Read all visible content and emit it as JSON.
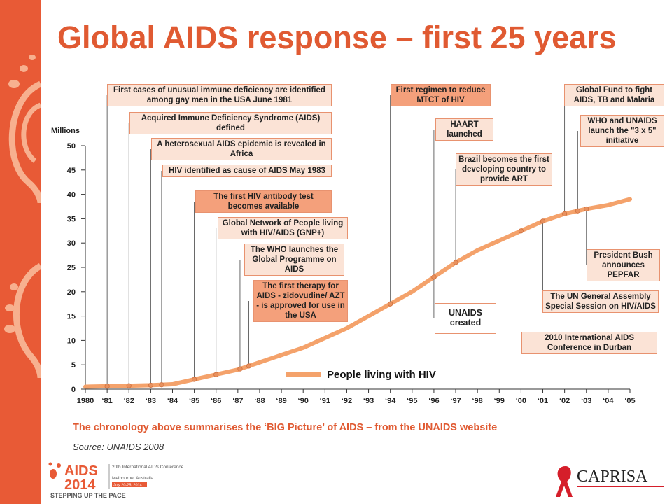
{
  "title": "Global AIDS response – first 25 years",
  "caption": "The chronology above summarises the ‘BIG Picture’ of AIDS – from the UNAIDS website",
  "source": "Source: UNAIDS 2008",
  "colors": {
    "accent": "#e05a32",
    "line": "#f4a26b",
    "box_border": "#e8926f",
    "box_fill": "#fbe3d6"
  },
  "chart_data": {
    "type": "line",
    "ylabel": "Millions",
    "ylim": [
      0,
      50
    ],
    "yticks": [
      0,
      5,
      10,
      15,
      20,
      25,
      30,
      35,
      40,
      45,
      50
    ],
    "xticks": [
      "1980",
      "‘81",
      "‘82",
      "‘83",
      "‘84",
      "‘85",
      "‘86",
      "‘87",
      "‘88",
      "‘89",
      "‘90",
      "‘91",
      "‘92",
      "‘93",
      "‘94",
      "‘95",
      "‘96",
      "‘97",
      "‘98",
      "‘99",
      "‘00",
      "‘01",
      "‘02",
      "‘03",
      "‘04",
      "‘05"
    ],
    "series": [
      {
        "name": "People living with HIV",
        "x": [
          1980,
          1981,
          1982,
          1983,
          1984,
          1985,
          1986,
          1987,
          1988,
          1989,
          1990,
          1991,
          1992,
          1993,
          1994,
          1995,
          1996,
          1997,
          1998,
          1999,
          2000,
          2001,
          2002,
          2003,
          2004,
          2005
        ],
        "values": [
          0.5,
          0.6,
          0.7,
          0.8,
          1.0,
          2.0,
          3.0,
          4.0,
          5.5,
          7.0,
          8.5,
          10.5,
          12.5,
          15.0,
          17.5,
          20.0,
          23.0,
          26.0,
          28.5,
          30.5,
          32.5,
          34.5,
          36.0,
          37.0,
          37.8,
          39.0
        ]
      }
    ],
    "markers": [
      1981,
      1982,
      1983,
      1983.5,
      1985,
      1986,
      1987.1,
      1987.5,
      1994,
      1996,
      1996,
      1997,
      2000,
      2001,
      2002,
      2002.6,
      2003
    ]
  },
  "events": [
    {
      "year": 1981,
      "text": "First cases of unusual immune deficiency are identified among gay men in the USA June 1981"
    },
    {
      "year": 1982,
      "text": "Acquired Immune Deficiency Syndrome (AIDS) defined"
    },
    {
      "year": 1983,
      "text": "A heterosexual AIDS epidemic is revealed in Africa"
    },
    {
      "year": 1983.5,
      "text": "HIV identified as cause of AIDS May 1983"
    },
    {
      "year": 1985,
      "text": "The first HIV antibody test becomes available"
    },
    {
      "year": 1986,
      "text": "Global Network of People living with HIV/AIDS (GNP+)"
    },
    {
      "year": 1987.1,
      "text": "The WHO launches the Global Programme on AIDS"
    },
    {
      "year": 1987.5,
      "text": "The first therapy for AIDS - zidovudine/ AZT - is approved for use in the USA"
    },
    {
      "year": 1994,
      "text": "First regimen to reduce MTCT of HIV"
    },
    {
      "year": 1996,
      "text": "HAART launched"
    },
    {
      "year": 1996,
      "text": "UNAIDS created"
    },
    {
      "year": 1997,
      "text": "Brazil becomes the first developing country to provide ART"
    },
    {
      "year": 2000,
      "text": "2010 International AIDS Conference in Durban"
    },
    {
      "year": 2001,
      "text": "The UN General Assembly Special Session on HIV/AIDS"
    },
    {
      "year": 2002,
      "text": "Global Fund to fight AIDS, TB and Malaria"
    },
    {
      "year": 2002.6,
      "text": "WHO and UNAIDS launch the \"3 x 5\" initiative"
    },
    {
      "year": 2003,
      "text": "President Bush announces PEPFAR"
    }
  ],
  "footer": {
    "aids_logo": "AIDS",
    "aids_year": "2014",
    "conference": "20th International AIDS Conference",
    "location": "Melbourne, Australia",
    "dates": "July 20-25, 2014",
    "tagline": "STEPPING UP THE PACE",
    "caprisa": "CAPRISA"
  }
}
